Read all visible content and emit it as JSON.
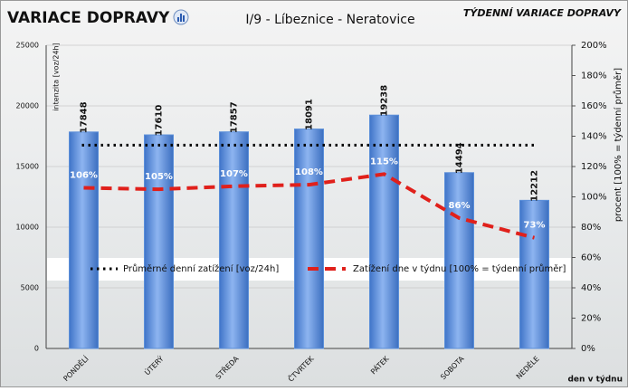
{
  "chart_data": {
    "type": "bar",
    "title": "VARIACE DOPRAVY",
    "subtitle": "I/9 - Líbeznice - Neratovice",
    "header_right": "TÝDENNÍ VARIACE DOPRAVY",
    "ylabel": "intenzita [voz/24h]",
    "y2label": "procent [100% = týdenní průměr]",
    "xlabel": "den v týdnu",
    "categories": [
      "PONDĚLÍ",
      "ÚTERÝ",
      "STŘEDA",
      "ČTVRTEK",
      "PÁTEK",
      "SOBOTA",
      "NEDĚLE"
    ],
    "series": [
      {
        "type": "bar",
        "color": "#5b8fd9",
        "values": [
          17848,
          17610,
          17857,
          18091,
          19238,
          14494,
          12212
        ]
      },
      {
        "type": "line",
        "name": "Zatížení dne v týdnu [100% = týdenní průměr]",
        "color": "#e0201b",
        "axis": "y2",
        "values": [
          106,
          105,
          107,
          108,
          115,
          86,
          73
        ],
        "value_labels": [
          "106%",
          "105%",
          "107%",
          "108%",
          "115%",
          "86%",
          "73%"
        ]
      }
    ],
    "average": {
      "name": "Průměrné denní zatížení [voz/24h]",
      "value": 16764,
      "color": "#000000"
    },
    "ylim": [
      0,
      25000
    ],
    "yticks": [
      0,
      5000,
      10000,
      15000,
      20000,
      25000
    ],
    "y2lim": [
      0,
      200
    ],
    "y2ticks": [
      {
        "value": 0,
        "label": "0%"
      },
      {
        "value": 20,
        "label": "20%"
      },
      {
        "value": 40,
        "label": "40%"
      },
      {
        "value": 60,
        "label": "60%"
      },
      {
        "value": 80,
        "label": "80%"
      },
      {
        "value": 100,
        "label": "100%"
      },
      {
        "value": 120,
        "label": "120%"
      },
      {
        "value": 140,
        "label": "140%"
      },
      {
        "value": 160,
        "label": "160%"
      },
      {
        "value": 180,
        "label": "180%"
      },
      {
        "value": 200,
        "label": "200%"
      }
    ],
    "grid": true
  }
}
